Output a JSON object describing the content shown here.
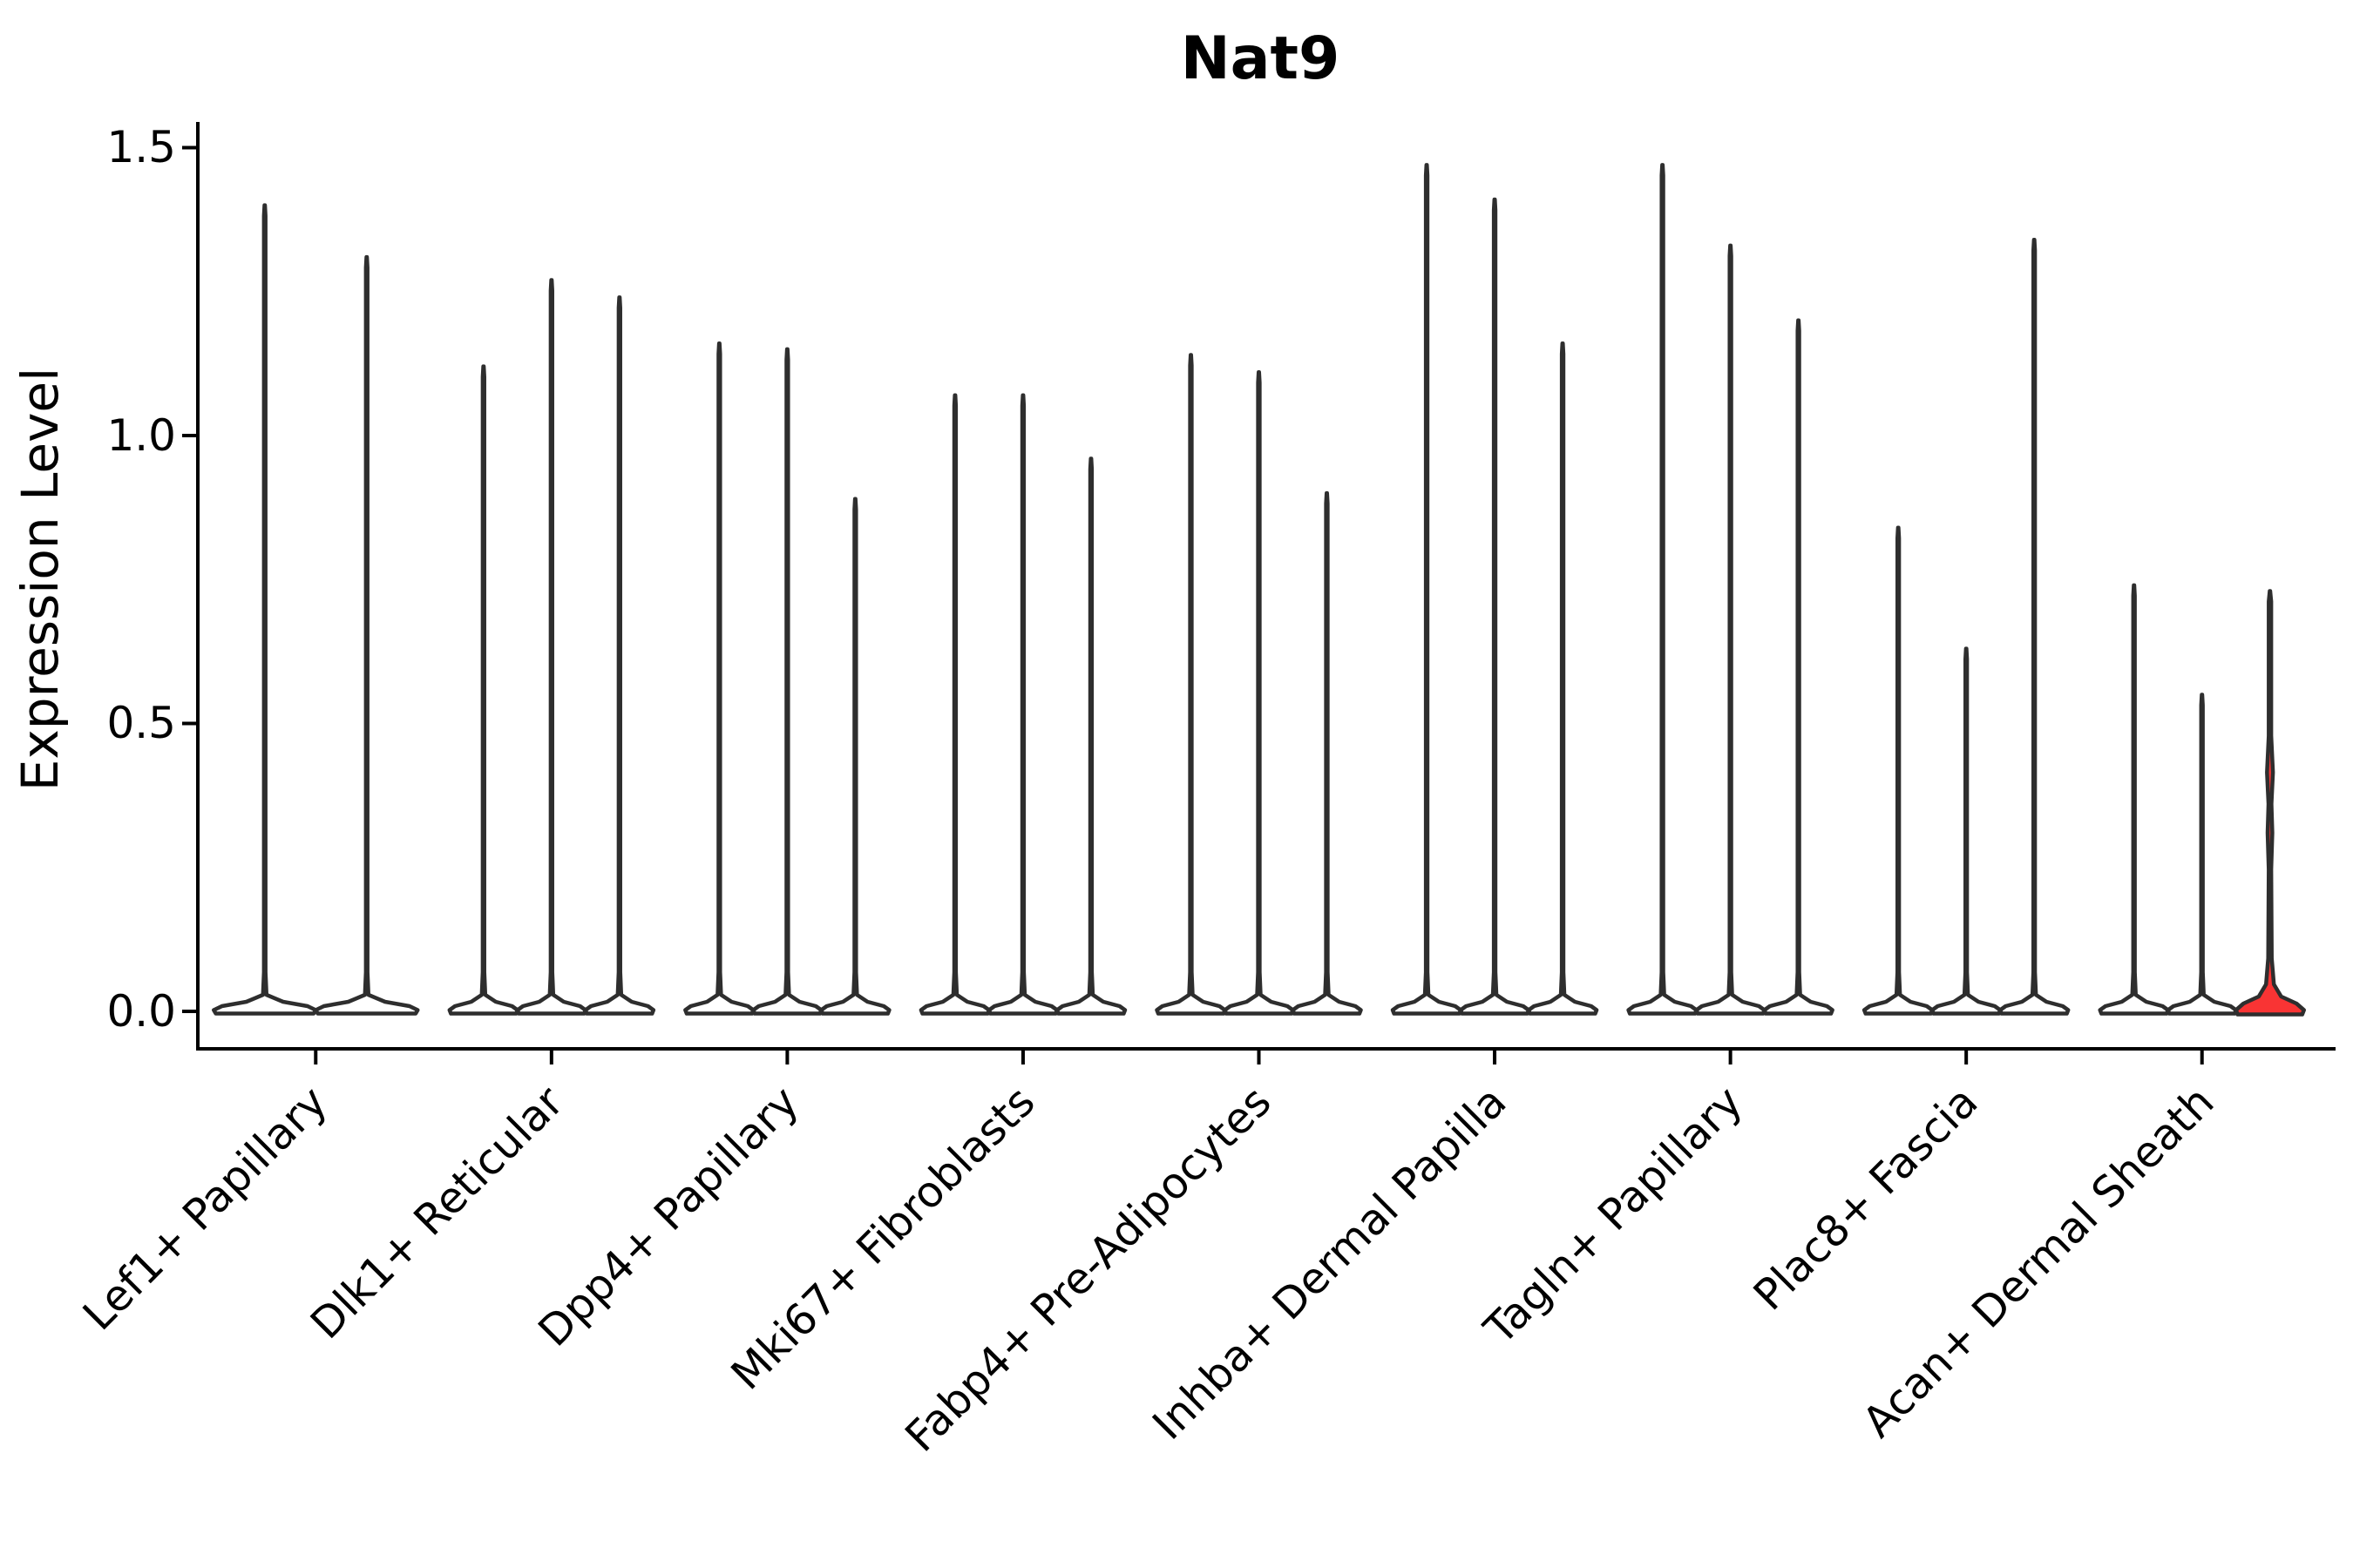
{
  "chart_data": {
    "type": "violin",
    "title": "Nat9",
    "xlabel": "",
    "ylabel": "Expression Level",
    "ylim": [
      0,
      1.57
    ],
    "yticks": [
      0.0,
      0.5,
      1.0,
      1.5
    ],
    "ytick_labels": [
      "0.0",
      "0.5",
      "1.0",
      "1.5"
    ],
    "grid": "off",
    "legend": "none",
    "background_color": "#ffffff",
    "violin_outline_color": "#2e2e2e",
    "violin_fill_color": "#ffffff",
    "highlight_fill_color": "#f93434",
    "axis_color": "#000000",
    "groups": [
      {
        "category": "Lef1+ Papillary",
        "violins": [
          {
            "peak": 1.4
          },
          {
            "peak": 1.31
          }
        ]
      },
      {
        "category": "Dlk1+ Reticular",
        "violins": [
          {
            "peak": 1.12
          },
          {
            "peak": 1.27
          },
          {
            "peak": 1.24
          }
        ]
      },
      {
        "category": "Dpp4+ Papillary",
        "violins": [
          {
            "peak": 1.16
          },
          {
            "peak": 1.15
          },
          {
            "peak": 0.89
          }
        ]
      },
      {
        "category": "Mki67+ Fibroblasts",
        "violins": [
          {
            "peak": 1.07
          },
          {
            "peak": 1.07
          },
          {
            "peak": 0.96
          }
        ]
      },
      {
        "category": "Fabp4+ Pre-Adipocytes",
        "violins": [
          {
            "peak": 1.14
          },
          {
            "peak": 1.11
          },
          {
            "peak": 0.9
          }
        ]
      },
      {
        "category": "Inhba+ Dermal Papilla",
        "violins": [
          {
            "peak": 1.47
          },
          {
            "peak": 1.41
          },
          {
            "peak": 1.16
          }
        ]
      },
      {
        "category": "Tagln+ Papillary",
        "violins": [
          {
            "peak": 1.47
          },
          {
            "peak": 1.33
          },
          {
            "peak": 1.2
          }
        ]
      },
      {
        "category": "Plac8+ Fascia",
        "violins": [
          {
            "peak": 0.84
          },
          {
            "peak": 0.63
          },
          {
            "peak": 1.34
          }
        ]
      },
      {
        "category": "Acan+ Dermal Sheath",
        "violins": [
          {
            "peak": 0.74
          },
          {
            "peak": 0.55
          },
          {
            "peak": 0.73,
            "fill": "#f93434",
            "spike_hw": 1.4,
            "base": "peaked",
            "bulges": [
              {
                "v": 0.415,
                "hw": 3.4
              },
              {
                "v": 0.31,
                "hw": 2.7
              }
            ]
          }
        ]
      }
    ]
  }
}
